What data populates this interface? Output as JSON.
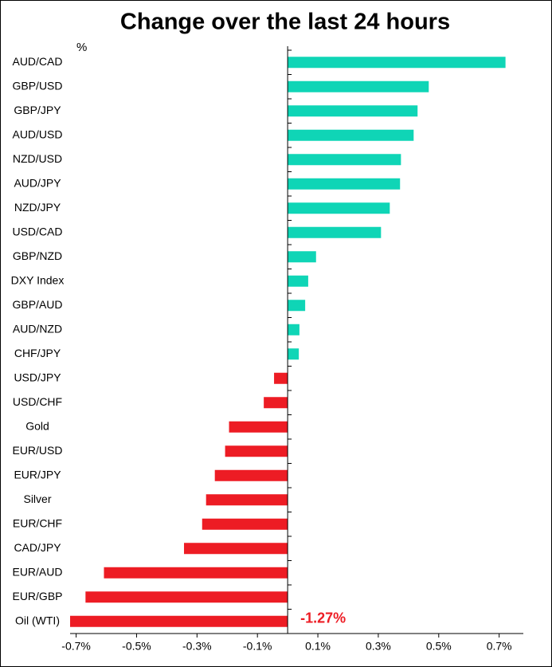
{
  "chart_data": {
    "type": "hbar",
    "title": "Change over the last 24 hours",
    "unit_label": "%",
    "categories": [
      "AUD/CAD",
      "GBP/USD",
      "GBP/JPY",
      "AUD/USD",
      "NZD/USD",
      "AUD/JPY",
      "NZD/JPY",
      "USD/CAD",
      "GBP/NZD",
      "DXY Index",
      "GBP/AUD",
      "AUD/NZD",
      "CHF/JPY",
      "USD/JPY",
      "USD/CHF",
      "Gold",
      "EUR/USD",
      "EUR/JPY",
      "Silver",
      "EUR/CHF",
      "CAD/JPY",
      "EUR/AUD",
      "EUR/GBP",
      "Oil (WTI)"
    ],
    "values": [
      0.721,
      0.467,
      0.43,
      0.417,
      0.375,
      0.372,
      0.338,
      0.309,
      0.094,
      0.068,
      0.058,
      0.039,
      0.037,
      -0.045,
      -0.079,
      -0.194,
      -0.207,
      -0.241,
      -0.27,
      -0.283,
      -0.343,
      -0.608,
      -0.669,
      -1.27
    ],
    "value_labels": [
      null,
      null,
      null,
      null,
      null,
      null,
      null,
      null,
      null,
      null,
      null,
      null,
      null,
      null,
      null,
      null,
      null,
      null,
      null,
      null,
      null,
      null,
      null,
      "-1.27%"
    ],
    "color_positive": "#0fd5b6",
    "color_negative": "#ed1c24",
    "xlim": [
      -0.72,
      0.78
    ],
    "xticks": [
      {
        "value": -0.7,
        "label": "-0.7%"
      },
      {
        "value": -0.5,
        "label": "-0.5%"
      },
      {
        "value": -0.3,
        "label": "-0.3%"
      },
      {
        "value": -0.1,
        "label": "-0.1%"
      },
      {
        "value": 0.1,
        "label": "0.1%"
      },
      {
        "value": 0.3,
        "label": "0.3%"
      },
      {
        "value": 0.5,
        "label": "0.5%"
      },
      {
        "value": 0.7,
        "label": "0.7%"
      }
    ]
  }
}
